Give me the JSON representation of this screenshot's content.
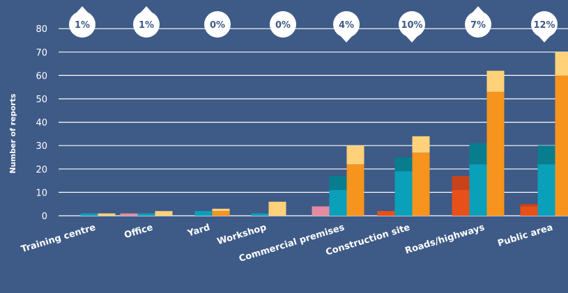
{
  "chart_data": {
    "type": "bar",
    "ylabel": "Number of reports",
    "ylim": [
      0,
      80
    ],
    "yticks": [
      0,
      10,
      20,
      30,
      40,
      50,
      60,
      70,
      80
    ],
    "grid": true,
    "categories": [
      "Training centre",
      "Office",
      "Yard",
      "Workshop",
      "Commercial premises",
      "Construction site",
      "Roads/highways",
      "Public area"
    ],
    "series": [
      {
        "values": [
          0,
          1,
          0,
          0,
          4,
          2,
          17,
          5
        ],
        "lower": [
          0,
          0,
          0,
          0,
          0,
          2,
          11,
          4
        ],
        "color_light": "#E38BA0",
        "color_lower": "#E8501A",
        "color_upper": "#C8431A"
      },
      {
        "values": [
          1,
          1,
          2,
          1,
          17,
          25,
          31,
          30
        ],
        "lower": [
          1,
          1,
          2,
          1,
          11,
          19,
          22,
          22
        ],
        "color_light": "#4DD4EE",
        "color_lower": "#0BA0BA",
        "color_upper": "#087D8E"
      },
      {
        "values": [
          1,
          2,
          3,
          6,
          30,
          34,
          62,
          70
        ],
        "lower": [
          0,
          0,
          2,
          0,
          22,
          27,
          53,
          60
        ],
        "color_light": "#FFD27A",
        "color_lower": "#F7941D",
        "color_upper": "#FFD27A"
      }
    ],
    "change_badges": [
      {
        "label": "1%",
        "direction": "up"
      },
      {
        "label": "1%",
        "direction": "up"
      },
      {
        "label": "0%",
        "direction": "none"
      },
      {
        "label": "0%",
        "direction": "none"
      },
      {
        "label": "4%",
        "direction": "down"
      },
      {
        "label": "10%",
        "direction": "down"
      },
      {
        "label": "7%",
        "direction": "up"
      },
      {
        "label": "12%",
        "direction": "down"
      }
    ]
  },
  "colors": {
    "background": "#3E5A87",
    "gridline": "#FFFFFF",
    "badge_fill": "#FFFFFF"
  }
}
